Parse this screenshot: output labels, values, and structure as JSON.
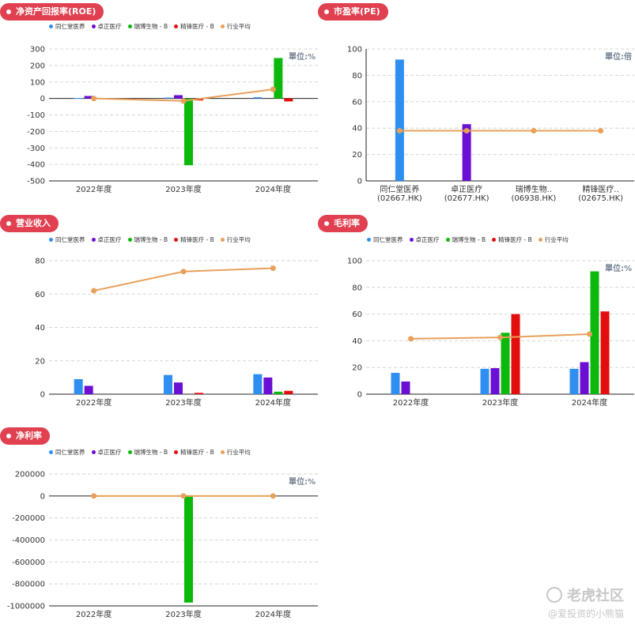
{
  "legend_items": [
    {
      "name": "同仁堂医养",
      "color": "#2e8ff0"
    },
    {
      "name": "卓正医疗",
      "color": "#6a0fd3"
    },
    {
      "name": "瑞博生物 - B",
      "color": "#0db80d"
    },
    {
      "name": "精锋医疗 - B",
      "color": "#e30d0d"
    },
    {
      "name": "行业平均",
      "color": "#e8a05a"
    }
  ],
  "watermark": {
    "brand": "老虎社区",
    "user": "@爱投资的小熊猫"
  },
  "chart_data": [
    {
      "id": "roe",
      "type": "bar",
      "title": "净资产回报率(ROE)",
      "unit": "單位:%",
      "categories": [
        "2022年度",
        "2023年度",
        "2024年度"
      ],
      "ylim": [
        -500,
        300
      ],
      "yticks": [
        300,
        200,
        100,
        0,
        -100,
        -200,
        -300,
        -400,
        -500
      ],
      "grid": true,
      "legend": "top",
      "series": [
        {
          "name": "同仁堂医养",
          "values": [
            3,
            5,
            7
          ]
        },
        {
          "name": "卓正医疗",
          "values": [
            15,
            20,
            null
          ]
        },
        {
          "name": "瑞博生物 - B",
          "values": [
            null,
            -405,
            245
          ]
        },
        {
          "name": "精锋医疗 - B",
          "values": [
            null,
            -12,
            -18
          ]
        }
      ],
      "line": {
        "name": "行业平均",
        "values": [
          0,
          -15,
          55
        ]
      }
    },
    {
      "id": "pe",
      "type": "bar",
      "title": "市盈率(PE)",
      "unit": "單位:倍",
      "categories": [
        "同仁堂医养\n(02667.HK)",
        "卓正医疗\n(02677.HK)",
        "瑞博生物..\n(06938.HK)",
        "精锋医疗..\n(02675.HK)"
      ],
      "ylim": [
        0,
        100
      ],
      "yticks": [
        100,
        80,
        60,
        40,
        20,
        0
      ],
      "grid": true,
      "legend": "none",
      "colored_bars": [
        {
          "value": 92,
          "color": "#2e8ff0"
        },
        {
          "value": 43,
          "color": "#6a0fd3"
        },
        {
          "value": null,
          "color": "#0db80d"
        },
        {
          "value": null,
          "color": "#e30d0d"
        }
      ],
      "line": {
        "name": "行业平均",
        "values": [
          38,
          38,
          38,
          38
        ]
      }
    },
    {
      "id": "revenue",
      "type": "bar",
      "title": "营业收入",
      "unit": "",
      "categories": [
        "2022年度",
        "2023年度",
        "2024年度"
      ],
      "ylim": [
        0,
        80
      ],
      "yticks": [
        80,
        60,
        40,
        20,
        0
      ],
      "grid": true,
      "legend": "top",
      "series": [
        {
          "name": "同仁堂医养",
          "values": [
            9,
            11.5,
            12
          ]
        },
        {
          "name": "卓正医疗",
          "values": [
            5,
            7,
            10
          ]
        },
        {
          "name": "瑞博生物 - B",
          "values": [
            null,
            null,
            1.5
          ]
        },
        {
          "name": "精锋医疗 - B",
          "values": [
            null,
            0.8,
            2
          ]
        }
      ],
      "line": {
        "name": "行业平均",
        "values": [
          62,
          73.5,
          75.5
        ]
      }
    },
    {
      "id": "gross",
      "type": "bar",
      "title": "毛利率",
      "unit": "單位:%",
      "categories": [
        "2022年度",
        "2023年度",
        "2024年度"
      ],
      "ylim": [
        0,
        100
      ],
      "yticks": [
        100,
        80,
        60,
        40,
        20,
        0
      ],
      "grid": true,
      "legend": "top",
      "series": [
        {
          "name": "同仁堂医养",
          "values": [
            16,
            19,
            19
          ]
        },
        {
          "name": "卓正医疗",
          "values": [
            9.5,
            19.5,
            24
          ]
        },
        {
          "name": "瑞博生物 - B",
          "values": [
            null,
            46,
            92
          ]
        },
        {
          "name": "精锋医疗 - B",
          "values": [
            null,
            60,
            62
          ]
        }
      ],
      "line": {
        "name": "行业平均",
        "values": [
          41.5,
          42.5,
          45
        ]
      }
    },
    {
      "id": "net",
      "type": "bar",
      "title": "净利率",
      "unit": "單位:%",
      "categories": [
        "2022年度",
        "2023年度",
        "2024年度"
      ],
      "ylim": [
        -1000000,
        200000
      ],
      "yticks": [
        200000,
        0,
        -200000,
        -400000,
        -600000,
        -800000,
        -1000000
      ],
      "grid": true,
      "legend": "top",
      "series": [
        {
          "name": "同仁堂医养",
          "values": [
            null,
            null,
            null
          ]
        },
        {
          "name": "卓正医疗",
          "values": [
            null,
            null,
            null
          ]
        },
        {
          "name": "瑞博生物 - B",
          "values": [
            null,
            -970000,
            null
          ]
        },
        {
          "name": "精锋医疗 - B",
          "values": [
            null,
            null,
            null
          ]
        }
      ],
      "line": {
        "name": "行业平均",
        "values": [
          0,
          0,
          0
        ]
      }
    }
  ]
}
